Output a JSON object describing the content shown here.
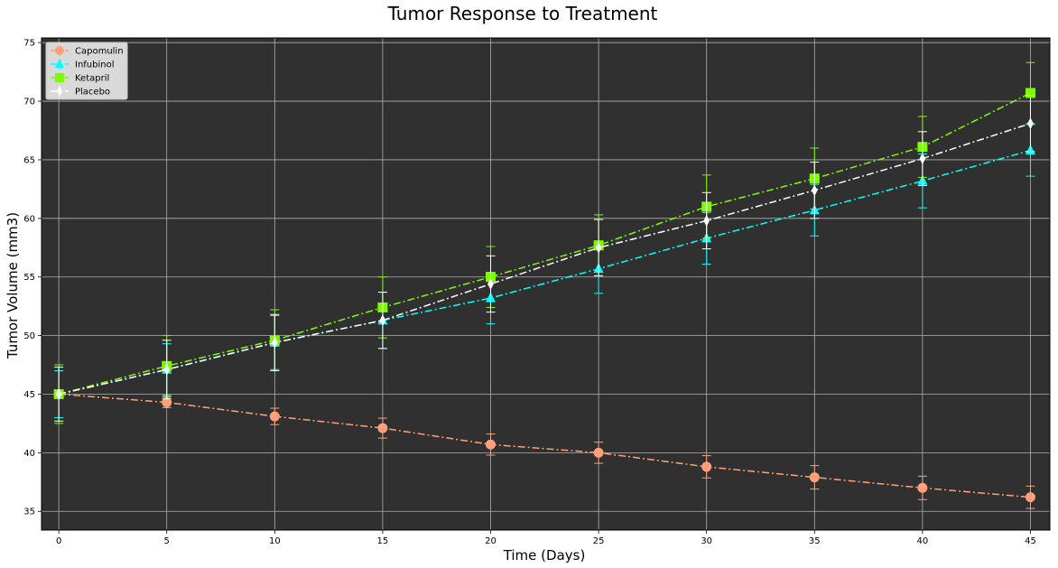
{
  "chart_data": {
    "type": "line",
    "title": "Tumor Response to Treatment",
    "xlabel": "Time (Days)",
    "ylabel": "Tumor Volume (mm3)",
    "x": [
      0,
      5,
      10,
      15,
      20,
      25,
      30,
      35,
      40,
      45
    ],
    "xlim": [
      -0.8,
      45.9
    ],
    "ylim": [
      33.4,
      75.4
    ],
    "xticks": [
      0,
      5,
      10,
      15,
      20,
      25,
      30,
      35,
      40,
      45
    ],
    "yticks": [
      35,
      40,
      45,
      50,
      55,
      60,
      65,
      70,
      75
    ],
    "grid": true,
    "legend_position": "top-left",
    "background": "#303030",
    "series": [
      {
        "name": "Capomulin",
        "color": "#ffa07a",
        "marker": "circle",
        "values": [
          45.0,
          44.3,
          43.1,
          42.1,
          40.7,
          40.0,
          38.8,
          37.9,
          37.0,
          36.2
        ],
        "errors": [
          0.0,
          0.45,
          0.7,
          0.85,
          0.9,
          0.9,
          0.95,
          1.0,
          1.0,
          0.95
        ]
      },
      {
        "name": "Infubinol",
        "color": "#00ffff",
        "marker": "triangle",
        "values": [
          45.0,
          47.1,
          49.4,
          51.3,
          53.2,
          55.7,
          58.3,
          60.7,
          63.2,
          65.8
        ],
        "errors": [
          2.0,
          2.2,
          2.3,
          2.4,
          2.2,
          2.1,
          2.2,
          2.2,
          2.3,
          2.2
        ]
      },
      {
        "name": "Ketapril",
        "color": "#7cfc00",
        "marker": "square",
        "values": [
          45.0,
          47.4,
          49.6,
          52.4,
          55.0,
          57.7,
          61.0,
          63.4,
          66.1,
          70.7
        ],
        "errors": [
          2.5,
          2.6,
          2.6,
          2.6,
          2.6,
          2.6,
          2.7,
          2.6,
          2.6,
          2.6
        ]
      },
      {
        "name": "Placebo",
        "color": "#ffffff",
        "marker": "diamond",
        "values": [
          45.0,
          47.1,
          49.4,
          51.3,
          54.4,
          57.5,
          59.8,
          62.4,
          65.1,
          68.1
        ],
        "errors": [
          2.3,
          2.5,
          2.4,
          2.4,
          2.4,
          2.4,
          2.4,
          2.4,
          2.3,
          2.4
        ]
      }
    ]
  }
}
